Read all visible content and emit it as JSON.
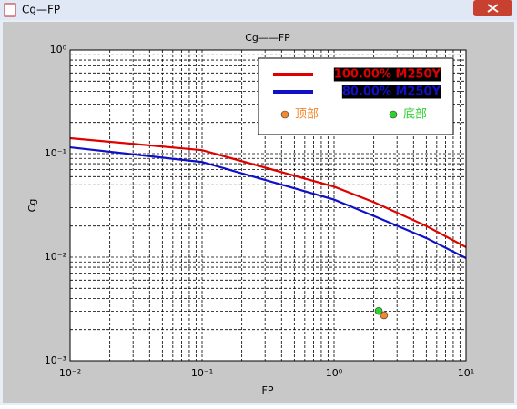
{
  "window": {
    "title": "Cg—FP"
  },
  "chart_data": {
    "type": "line",
    "title": "Cg——FP",
    "x_label": "FP",
    "y_label": "Cg",
    "xlog": true,
    "ylog": true,
    "grid": true,
    "minor_ticks": [
      2,
      3,
      4,
      5,
      6,
      7,
      8,
      9
    ],
    "legend": "upper right",
    "xlim": [
      0.01,
      10
    ],
    "ylim": [
      0.001,
      1
    ],
    "xticks": [
      {
        "value": 0.01,
        "label": "10⁻²"
      },
      {
        "value": 0.1,
        "label": "10⁻¹"
      },
      {
        "value": 1,
        "label": "10⁰"
      },
      {
        "value": 10,
        "label": "10¹"
      }
    ],
    "yticks": [
      {
        "value": 0.001,
        "label": "10⁻³"
      },
      {
        "value": 0.01,
        "label": "10⁻²"
      },
      {
        "value": 0.1,
        "label": "10⁻¹"
      },
      {
        "value": 1,
        "label": "10⁰"
      }
    ],
    "series": [
      {
        "name": "100.00% M250Y",
        "type": "line",
        "color": "#e00000",
        "x": [
          0.01,
          0.1,
          1,
          2,
          5,
          10
        ],
        "values": [
          0.141,
          0.108,
          0.048,
          0.034,
          0.02,
          0.0125
        ]
      },
      {
        "name": "80.00% M250Y",
        "type": "line",
        "color": "#1010c8",
        "x": [
          0.01,
          0.1,
          1,
          2,
          5,
          10
        ],
        "values": [
          0.115,
          0.083,
          0.036,
          0.025,
          0.0153,
          0.0098
        ]
      },
      {
        "name": "顶部",
        "type": "scatter",
        "color": "#f08a30",
        "x": [
          2.39
        ],
        "values": [
          0.00275
        ]
      },
      {
        "name": "底部",
        "type": "scatter",
        "color": "#30d030",
        "x": [
          2.18
        ],
        "values": [
          0.00303
        ]
      }
    ]
  }
}
